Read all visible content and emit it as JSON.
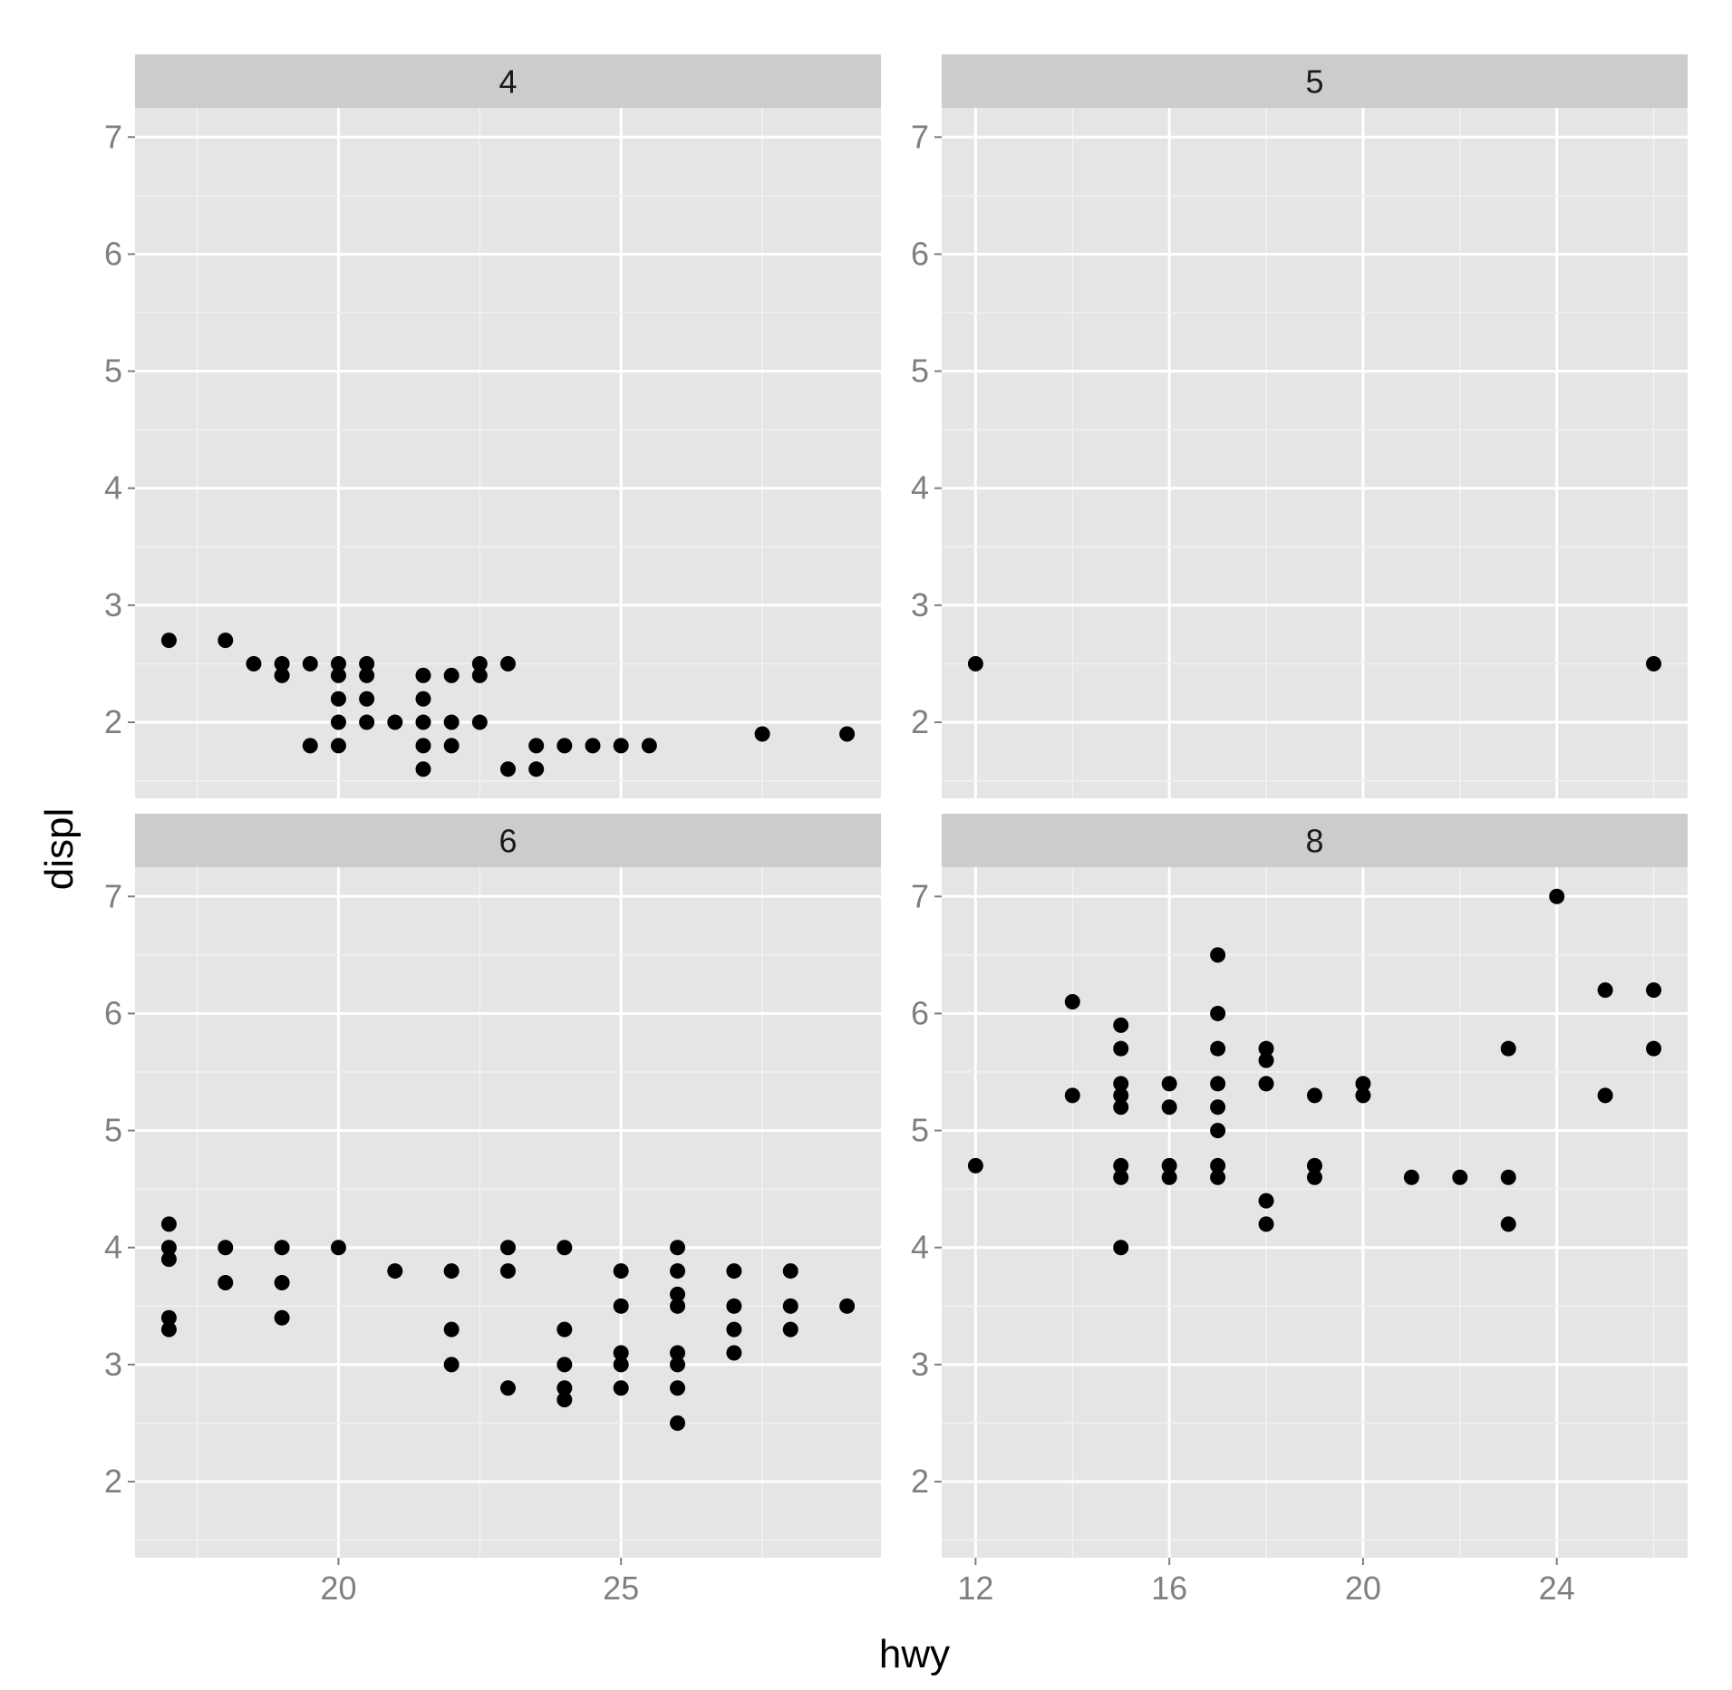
{
  "colors": {
    "panel_background": "#e5e5e5",
    "strip_background": "#cccccc",
    "major_grid": "#ffffff",
    "minor_grid": "#f2f2f2",
    "point": "#000000",
    "tick_text": "#7f7f7f"
  },
  "chart_data": {
    "type": "scatter",
    "xlabel": "hwy",
    "ylabel": "displ",
    "facet_by": "cyl",
    "grid": true,
    "y_axis": {
      "ylim": [
        1.35,
        7.25
      ],
      "ticks": [
        2,
        3,
        4,
        5,
        6,
        7
      ],
      "tick_labels": [
        "2",
        "3",
        "4",
        "5",
        "6",
        "7"
      ]
    },
    "panels": [
      {
        "strip_label": "4",
        "xlim": [
          16.4,
          29.6
        ],
        "x_ticks": [],
        "x_tick_labels": [],
        "points": [
          [
            17,
            2.7
          ],
          [
            18,
            2.7
          ],
          [
            18.5,
            2.5
          ],
          [
            19,
            2.5
          ],
          [
            19,
            2.4
          ],
          [
            19.5,
            2.5
          ],
          [
            19.5,
            1.8
          ],
          [
            20,
            2.5
          ],
          [
            20,
            2.4
          ],
          [
            20,
            2.2
          ],
          [
            20,
            2.0
          ],
          [
            20,
            1.8
          ],
          [
            20.5,
            2.5
          ],
          [
            20.5,
            2.4
          ],
          [
            20.5,
            2.2
          ],
          [
            20.5,
            2.0
          ],
          [
            21,
            2.0
          ],
          [
            21.5,
            2.4
          ],
          [
            21.5,
            2.2
          ],
          [
            21.5,
            2.0
          ],
          [
            21.5,
            1.8
          ],
          [
            21.5,
            1.6
          ],
          [
            22,
            2.4
          ],
          [
            22,
            2.0
          ],
          [
            22,
            1.8
          ],
          [
            22.5,
            2.5
          ],
          [
            22.5,
            2.4
          ],
          [
            22.5,
            2.0
          ],
          [
            23,
            2.5
          ],
          [
            23,
            1.6
          ],
          [
            23.5,
            1.8
          ],
          [
            23.5,
            1.6
          ],
          [
            24,
            1.8
          ],
          [
            24.5,
            1.8
          ],
          [
            25,
            1.8
          ],
          [
            25.5,
            1.8
          ],
          [
            27.5,
            1.9
          ],
          [
            29,
            1.9
          ]
        ]
      },
      {
        "strip_label": "5",
        "xlim": [
          11.3,
          26.7
        ],
        "x_ticks": [],
        "x_tick_labels": [],
        "points": [
          [
            12,
            2.5
          ],
          [
            26,
            2.5
          ]
        ]
      },
      {
        "strip_label": "6",
        "xlim": [
          16.4,
          29.6
        ],
        "x_ticks": [
          20,
          25
        ],
        "x_tick_labels": [
          "20",
          "25"
        ],
        "points": [
          [
            17,
            4.2
          ],
          [
            17,
            4.0
          ],
          [
            17,
            3.9
          ],
          [
            17,
            3.4
          ],
          [
            17,
            3.3
          ],
          [
            18,
            4.0
          ],
          [
            18,
            3.7
          ],
          [
            19,
            4.0
          ],
          [
            19,
            3.7
          ],
          [
            19,
            3.4
          ],
          [
            20,
            4.0
          ],
          [
            21,
            3.8
          ],
          [
            22,
            3.8
          ],
          [
            22,
            3.3
          ],
          [
            22,
            3.0
          ],
          [
            23,
            4.0
          ],
          [
            23,
            3.8
          ],
          [
            23,
            2.8
          ],
          [
            24,
            4.0
          ],
          [
            24,
            3.3
          ],
          [
            24,
            3.0
          ],
          [
            24,
            2.8
          ],
          [
            24,
            2.7
          ],
          [
            25,
            3.8
          ],
          [
            25,
            3.5
          ],
          [
            25,
            3.1
          ],
          [
            25,
            3.0
          ],
          [
            25,
            2.8
          ],
          [
            26,
            4.0
          ],
          [
            26,
            3.8
          ],
          [
            26,
            3.6
          ],
          [
            26,
            3.5
          ],
          [
            26,
            3.1
          ],
          [
            26,
            3.0
          ],
          [
            26,
            2.8
          ],
          [
            26,
            2.5
          ],
          [
            27,
            3.8
          ],
          [
            27,
            3.5
          ],
          [
            27,
            3.3
          ],
          [
            27,
            3.1
          ],
          [
            28,
            3.8
          ],
          [
            28,
            3.5
          ],
          [
            28,
            3.3
          ],
          [
            29,
            3.5
          ]
        ]
      },
      {
        "strip_label": "8",
        "xlim": [
          11.3,
          26.7
        ],
        "x_ticks": [
          12,
          16,
          20,
          24
        ],
        "x_tick_labels": [
          "12",
          "16",
          "20",
          "24"
        ],
        "points": [
          [
            12,
            4.7
          ],
          [
            14,
            6.1
          ],
          [
            14,
            5.3
          ],
          [
            15,
            5.9
          ],
          [
            15,
            5.7
          ],
          [
            15,
            5.4
          ],
          [
            15,
            5.3
          ],
          [
            15,
            5.2
          ],
          [
            15,
            4.7
          ],
          [
            15,
            4.6
          ],
          [
            15,
            4.0
          ],
          [
            16,
            5.4
          ],
          [
            16,
            5.2
          ],
          [
            16,
            4.7
          ],
          [
            16,
            4.6
          ],
          [
            17,
            6.5
          ],
          [
            17,
            6.0
          ],
          [
            17,
            5.7
          ],
          [
            17,
            5.4
          ],
          [
            17,
            5.2
          ],
          [
            17,
            5.0
          ],
          [
            17,
            4.7
          ],
          [
            17,
            4.6
          ],
          [
            18,
            5.7
          ],
          [
            18,
            5.6
          ],
          [
            18,
            5.4
          ],
          [
            18,
            4.4
          ],
          [
            18,
            4.2
          ],
          [
            19,
            5.3
          ],
          [
            19,
            4.7
          ],
          [
            19,
            4.6
          ],
          [
            20,
            5.4
          ],
          [
            20,
            5.3
          ],
          [
            21,
            4.6
          ],
          [
            22,
            4.6
          ],
          [
            23,
            5.7
          ],
          [
            23,
            4.6
          ],
          [
            23,
            4.2
          ],
          [
            24,
            7.0
          ],
          [
            25,
            6.2
          ],
          [
            25,
            5.3
          ],
          [
            26,
            6.2
          ],
          [
            26,
            5.7
          ]
        ]
      }
    ]
  }
}
